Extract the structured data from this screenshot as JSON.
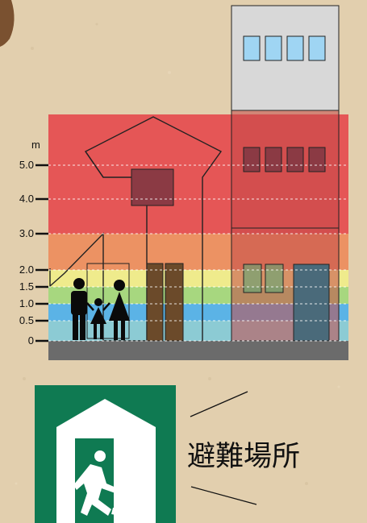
{
  "depth_scale": {
    "unit": "m",
    "ticks": [
      {
        "label": "5.0",
        "value": 5.0
      },
      {
        "label": "4.0",
        "value": 4.0
      },
      {
        "label": "3.0",
        "value": 3.0
      },
      {
        "label": "2.0",
        "value": 2.0
      },
      {
        "label": "1.5",
        "value": 1.5
      },
      {
        "label": "1.0",
        "value": 1.0
      },
      {
        "label": "0.5",
        "value": 0.5
      },
      {
        "label": "0",
        "value": 0
      }
    ]
  },
  "depth_bands": [
    {
      "from": 0,
      "to": 0.5,
      "color": "#8ccbd4"
    },
    {
      "from": 0.5,
      "to": 1.0,
      "color": "#5bb3e6"
    },
    {
      "from": 1.0,
      "to": 1.5,
      "color": "#a7d77f"
    },
    {
      "from": 1.5,
      "to": 2.0,
      "color": "#efeb8c"
    },
    {
      "from": 2.0,
      "to": 3.0,
      "color": "#ec9263"
    },
    {
      "from": 3.0,
      "to": 6.5,
      "color": "#e55656"
    }
  ],
  "colors": {
    "ground": "#6b6b6b",
    "sign_green": "#0f7a52",
    "building_gray": "#d8d8d8",
    "window_blue": "#9fd5f3",
    "figure": "#0a0a0a"
  },
  "evacuation_sign": {
    "label": "避難場所",
    "icon": "running-person-exit-icon"
  }
}
